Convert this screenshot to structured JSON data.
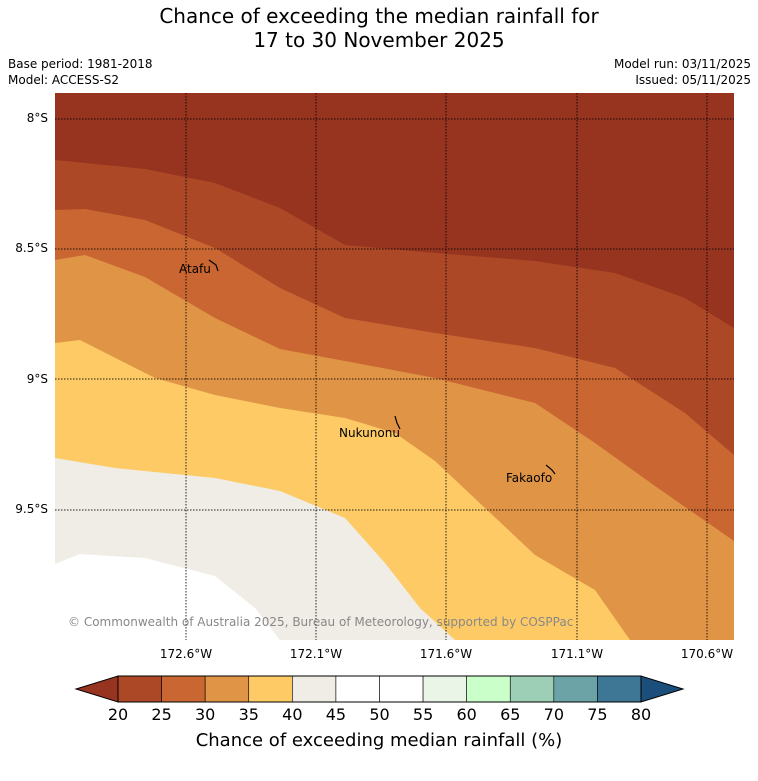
{
  "title": {
    "line1": "Chance of exceeding the median rainfall for",
    "line2": "17 to 30 November 2025"
  },
  "meta": {
    "base_period": "Base period: 1981-2018",
    "model": "Model: ACCESS-S2",
    "model_run": "Model run: 03/11/2025",
    "issued": "Issued: 05/11/2025"
  },
  "map": {
    "lat_labels": [
      "8°S",
      "8.5°S",
      "9°S",
      "9.5°S"
    ],
    "lon_labels": [
      "172.6°W",
      "172.1°W",
      "171.6°W",
      "171.1°W",
      "170.6°W"
    ],
    "places": [
      {
        "name": "Atafu"
      },
      {
        "name": "Nukunonu"
      },
      {
        "name": "Fakaofo"
      }
    ],
    "attribution": "© Commonwealth of Australia 2025, Bureau of Meteorology, supported by COSPPac",
    "colors": {
      "below20": "#96341f",
      "20_25": "#ad4826",
      "25_30": "#c96632",
      "30_35": "#e09546",
      "35_40": "#fdca66",
      "40_45": "#f0ece6",
      "45_55": "#ffffff"
    }
  },
  "colorbar": {
    "ticks": [
      "20",
      "25",
      "30",
      "35",
      "40",
      "45",
      "50",
      "55",
      "60",
      "65",
      "70",
      "75",
      "80"
    ],
    "colors": [
      "#ad4826",
      "#c96632",
      "#e09546",
      "#fdca66",
      "#f0ece6",
      "#ffffff",
      "#ffffff",
      "#eaf5e8",
      "#caffca",
      "#9ccfb6",
      "#6ca3a6",
      "#3e7796"
    ],
    "low_extend_color": "#96341f",
    "high_extend_color": "#1c4e7c",
    "label": "Chance of exceeding median rainfall (%)"
  }
}
